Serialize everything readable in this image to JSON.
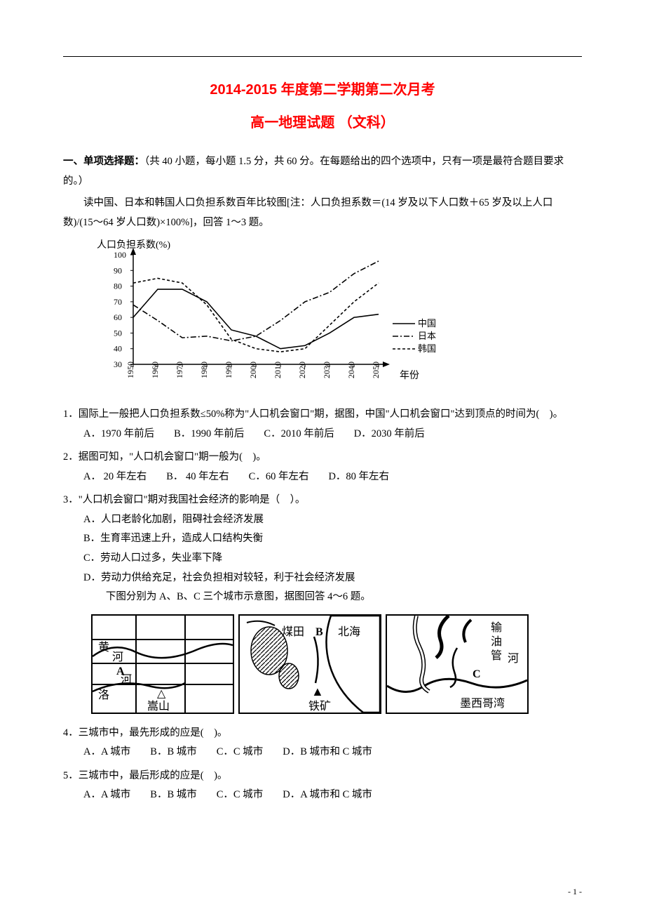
{
  "header": {
    "title1": "2014-2015 年度第二学期第二次月考",
    "title2": "高一地理试题 （文科）"
  },
  "intro": {
    "section_label": "一、单项选择题：",
    "section_desc": "（共 40 小题，每小题 1.5 分，共 60 分。在每题给出的四个选项中，只有一项是最符合题目要求的。）",
    "passage": "读中国、日本和韩国人口负担系数百年比较图[注：人口负担系数＝(14 岁及以下人口数＋65 岁及以上人口数)/(15～64 岁人口数)×100%]，回答 1～3 题。"
  },
  "chart": {
    "type": "line",
    "title": "人口负担系数(%)",
    "xlabel": "年份",
    "x_ticks": [
      "1950",
      "1960",
      "1970",
      "1980",
      "1990",
      "2000",
      "2010",
      "2020",
      "2030",
      "2040",
      "2050"
    ],
    "ylim": [
      30,
      100
    ],
    "y_ticks": [
      30,
      40,
      50,
      60,
      70,
      80,
      90,
      100
    ],
    "series": [
      {
        "name": "中国",
        "dash": "none",
        "color": "#000000",
        "values": [
          60,
          78,
          78,
          70,
          52,
          48,
          40,
          42,
          50,
          60,
          62
        ]
      },
      {
        "name": "日本",
        "dash": "dashdot",
        "color": "#000000",
        "values": [
          68,
          58,
          47,
          48,
          45,
          48,
          58,
          70,
          76,
          88,
          96
        ]
      },
      {
        "name": "韩国",
        "dash": "dash",
        "color": "#000000",
        "values": [
          82,
          85,
          82,
          68,
          46,
          40,
          38,
          40,
          55,
          70,
          82
        ]
      }
    ],
    "legend": [
      "中国",
      "日本",
      "韩国"
    ],
    "axis_color": "#000000",
    "label_fontsize": 13,
    "tick_fontsize": 12,
    "background_color": "#ffffff",
    "line_width": 1.6
  },
  "questions": [
    {
      "stem": "1．国际上一般把人口负担系数≤50%称为\"人口机会窗口\"期，据图，中国\"人口机会窗口\"达到顶点的时间为(　)。",
      "opts": [
        "A．1970 年前后",
        "B．1990 年前后",
        "C．2010 年前后",
        "D．2030 年前后"
      ]
    },
    {
      "stem": "2．据图可知，\"人口机会窗口\"期一般为(　)。",
      "opts": [
        "A． 20 年左右",
        "B． 40 年左右",
        "C．60 年左右",
        "D．80 年左右"
      ]
    },
    {
      "stem": "3．\"人口机会窗口\"期对我国社会经济的影响是（　）。",
      "opts": [
        "A．人口老龄化加剧，阻碍社会经济发展",
        "B．生育率迅速上升，造成人口结构失衡",
        "C．劳动人口过多，失业率下降",
        "D．劳动力供给充足，社会负担相对较轻，利于社会经济发展"
      ],
      "vertical": true,
      "tail": "下图分别为 A、B、C 三个城市示意图，据图回答 4～6 题。"
    }
  ],
  "maps": {
    "a": {
      "labels": {
        "huang": "黄",
        "he": "河",
        "luo": "洛",
        "he2": "河",
        "A": "A",
        "song": "嵩山"
      }
    },
    "b": {
      "labels": {
        "mei": "煤田",
        "B": "B",
        "bei": "北海",
        "tie": "铁矿"
      }
    },
    "c": {
      "labels": {
        "shu": "输",
        "you": "油",
        "guan": "管",
        "he": "河",
        "C": "C",
        "mo": "墨西哥湾"
      }
    }
  },
  "questions2": [
    {
      "stem": "4．三城市中，最先形成的应是(　)。",
      "opts": [
        "A．A 城市",
        "B．B 城市",
        "C．C 城市",
        "D．B 城市和 C 城市"
      ]
    },
    {
      "stem": "5．三城市中，最后形成的应是(　)。",
      "opts": [
        "A．A 城市",
        "B．B 城市",
        "C．C 城市",
        "D．A 城市和 C 城市"
      ]
    }
  ],
  "pagenum": "- 1 -"
}
